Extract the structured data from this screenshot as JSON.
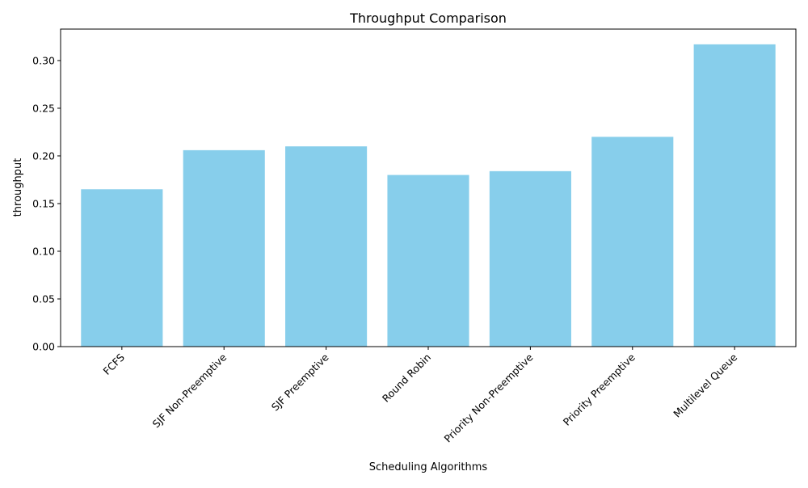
{
  "chart_data": {
    "type": "bar",
    "title": "Throughput Comparison",
    "xlabel": "Scheduling Algorithms",
    "ylabel": "throughput",
    "categories": [
      "FCFS",
      "SJF Non-Preemptive",
      "SJF Preemptive",
      "Round Robin",
      "Priority Non-Preemptive",
      "Priority Preemptive",
      "Multilevel Queue"
    ],
    "values": [
      0.165,
      0.206,
      0.21,
      0.18,
      0.184,
      0.22,
      0.317
    ],
    "ylim": [
      0,
      0.333
    ],
    "yticks": [
      0.0,
      0.05,
      0.1,
      0.15,
      0.2,
      0.25,
      0.3
    ],
    "ytick_labels": [
      "0.00",
      "0.05",
      "0.10",
      "0.15",
      "0.20",
      "0.25",
      "0.30"
    ],
    "bar_color": "#87ceeb",
    "grid": false,
    "legend": "none"
  }
}
